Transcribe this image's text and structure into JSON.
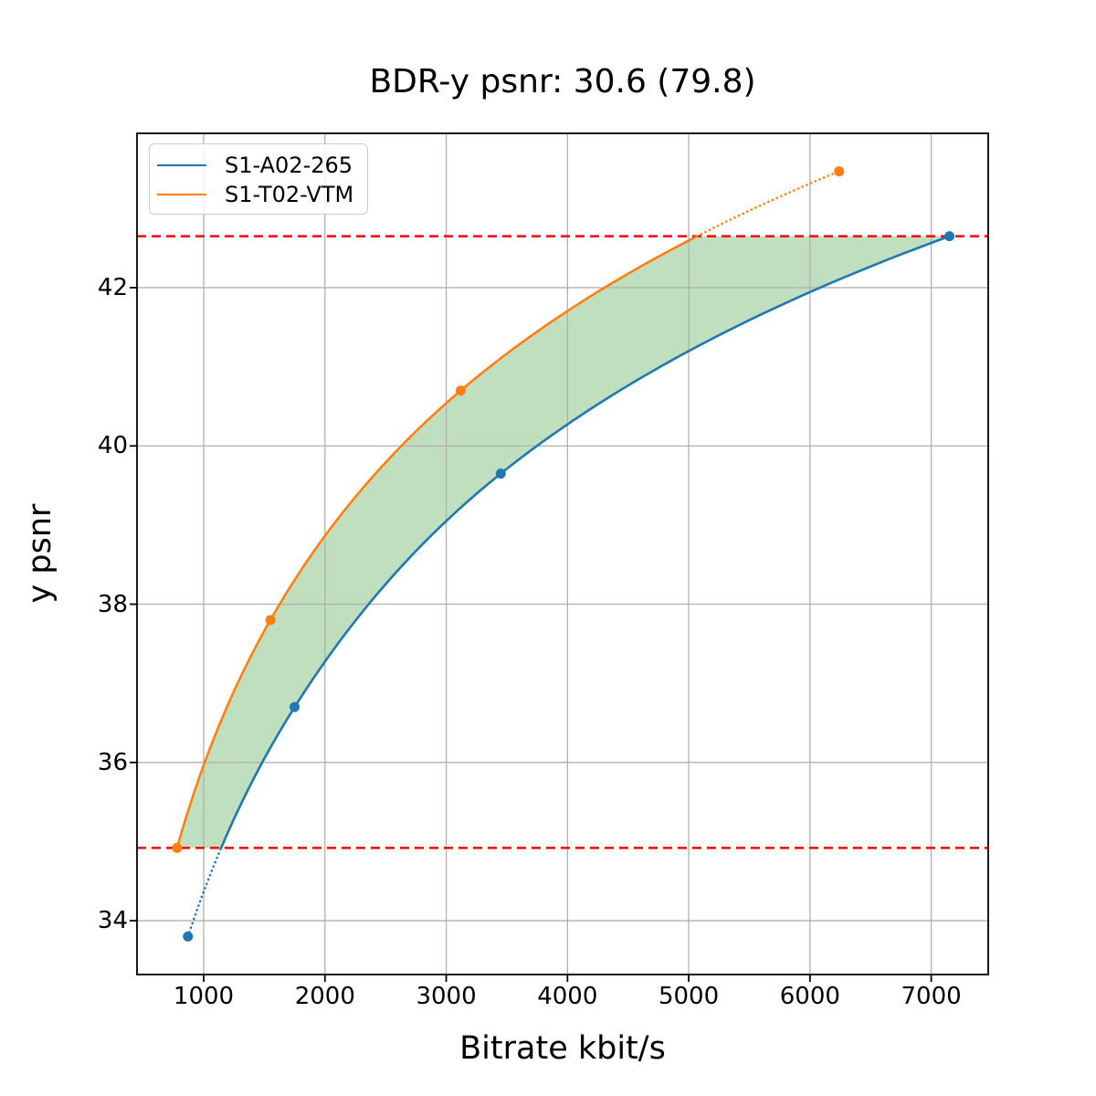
{
  "chart_data": {
    "type": "line",
    "title": "BDR-y psnr: 30.6 (79.8)",
    "xlabel": "Bitrate kbit/s",
    "ylabel": "y psnr",
    "xlim": [
      450,
      7470
    ],
    "ylim": [
      33.32,
      43.95
    ],
    "xticks": [
      1000,
      2000,
      3000,
      4000,
      5000,
      6000,
      7000
    ],
    "yticks": [
      34,
      36,
      38,
      40,
      42
    ],
    "grid": true,
    "grid_color": "#b0b0b0",
    "legend_position": "upper left",
    "interpolation": "pchip-on-log-bitrate",
    "series": [
      {
        "name": "S1-A02-265",
        "color": "#1f77b4",
        "points": [
          [
            870,
            33.8
          ],
          [
            1750,
            36.7
          ],
          [
            3450,
            39.65
          ],
          [
            7150,
            42.65
          ]
        ]
      },
      {
        "name": "S1-T02-VTM",
        "color": "#ff7f0e",
        "points": [
          [
            780,
            34.92
          ],
          [
            1550,
            37.8
          ],
          [
            3120,
            40.7
          ],
          [
            6240,
            43.47
          ]
        ]
      }
    ],
    "overlap_lines": {
      "values": [
        34.92,
        42.65
      ],
      "color": "#ff0000",
      "style": "dashed"
    },
    "fill_between": {
      "upper_series": 1,
      "lower_series": 0,
      "color": "#008000",
      "alpha": 0.25
    }
  }
}
